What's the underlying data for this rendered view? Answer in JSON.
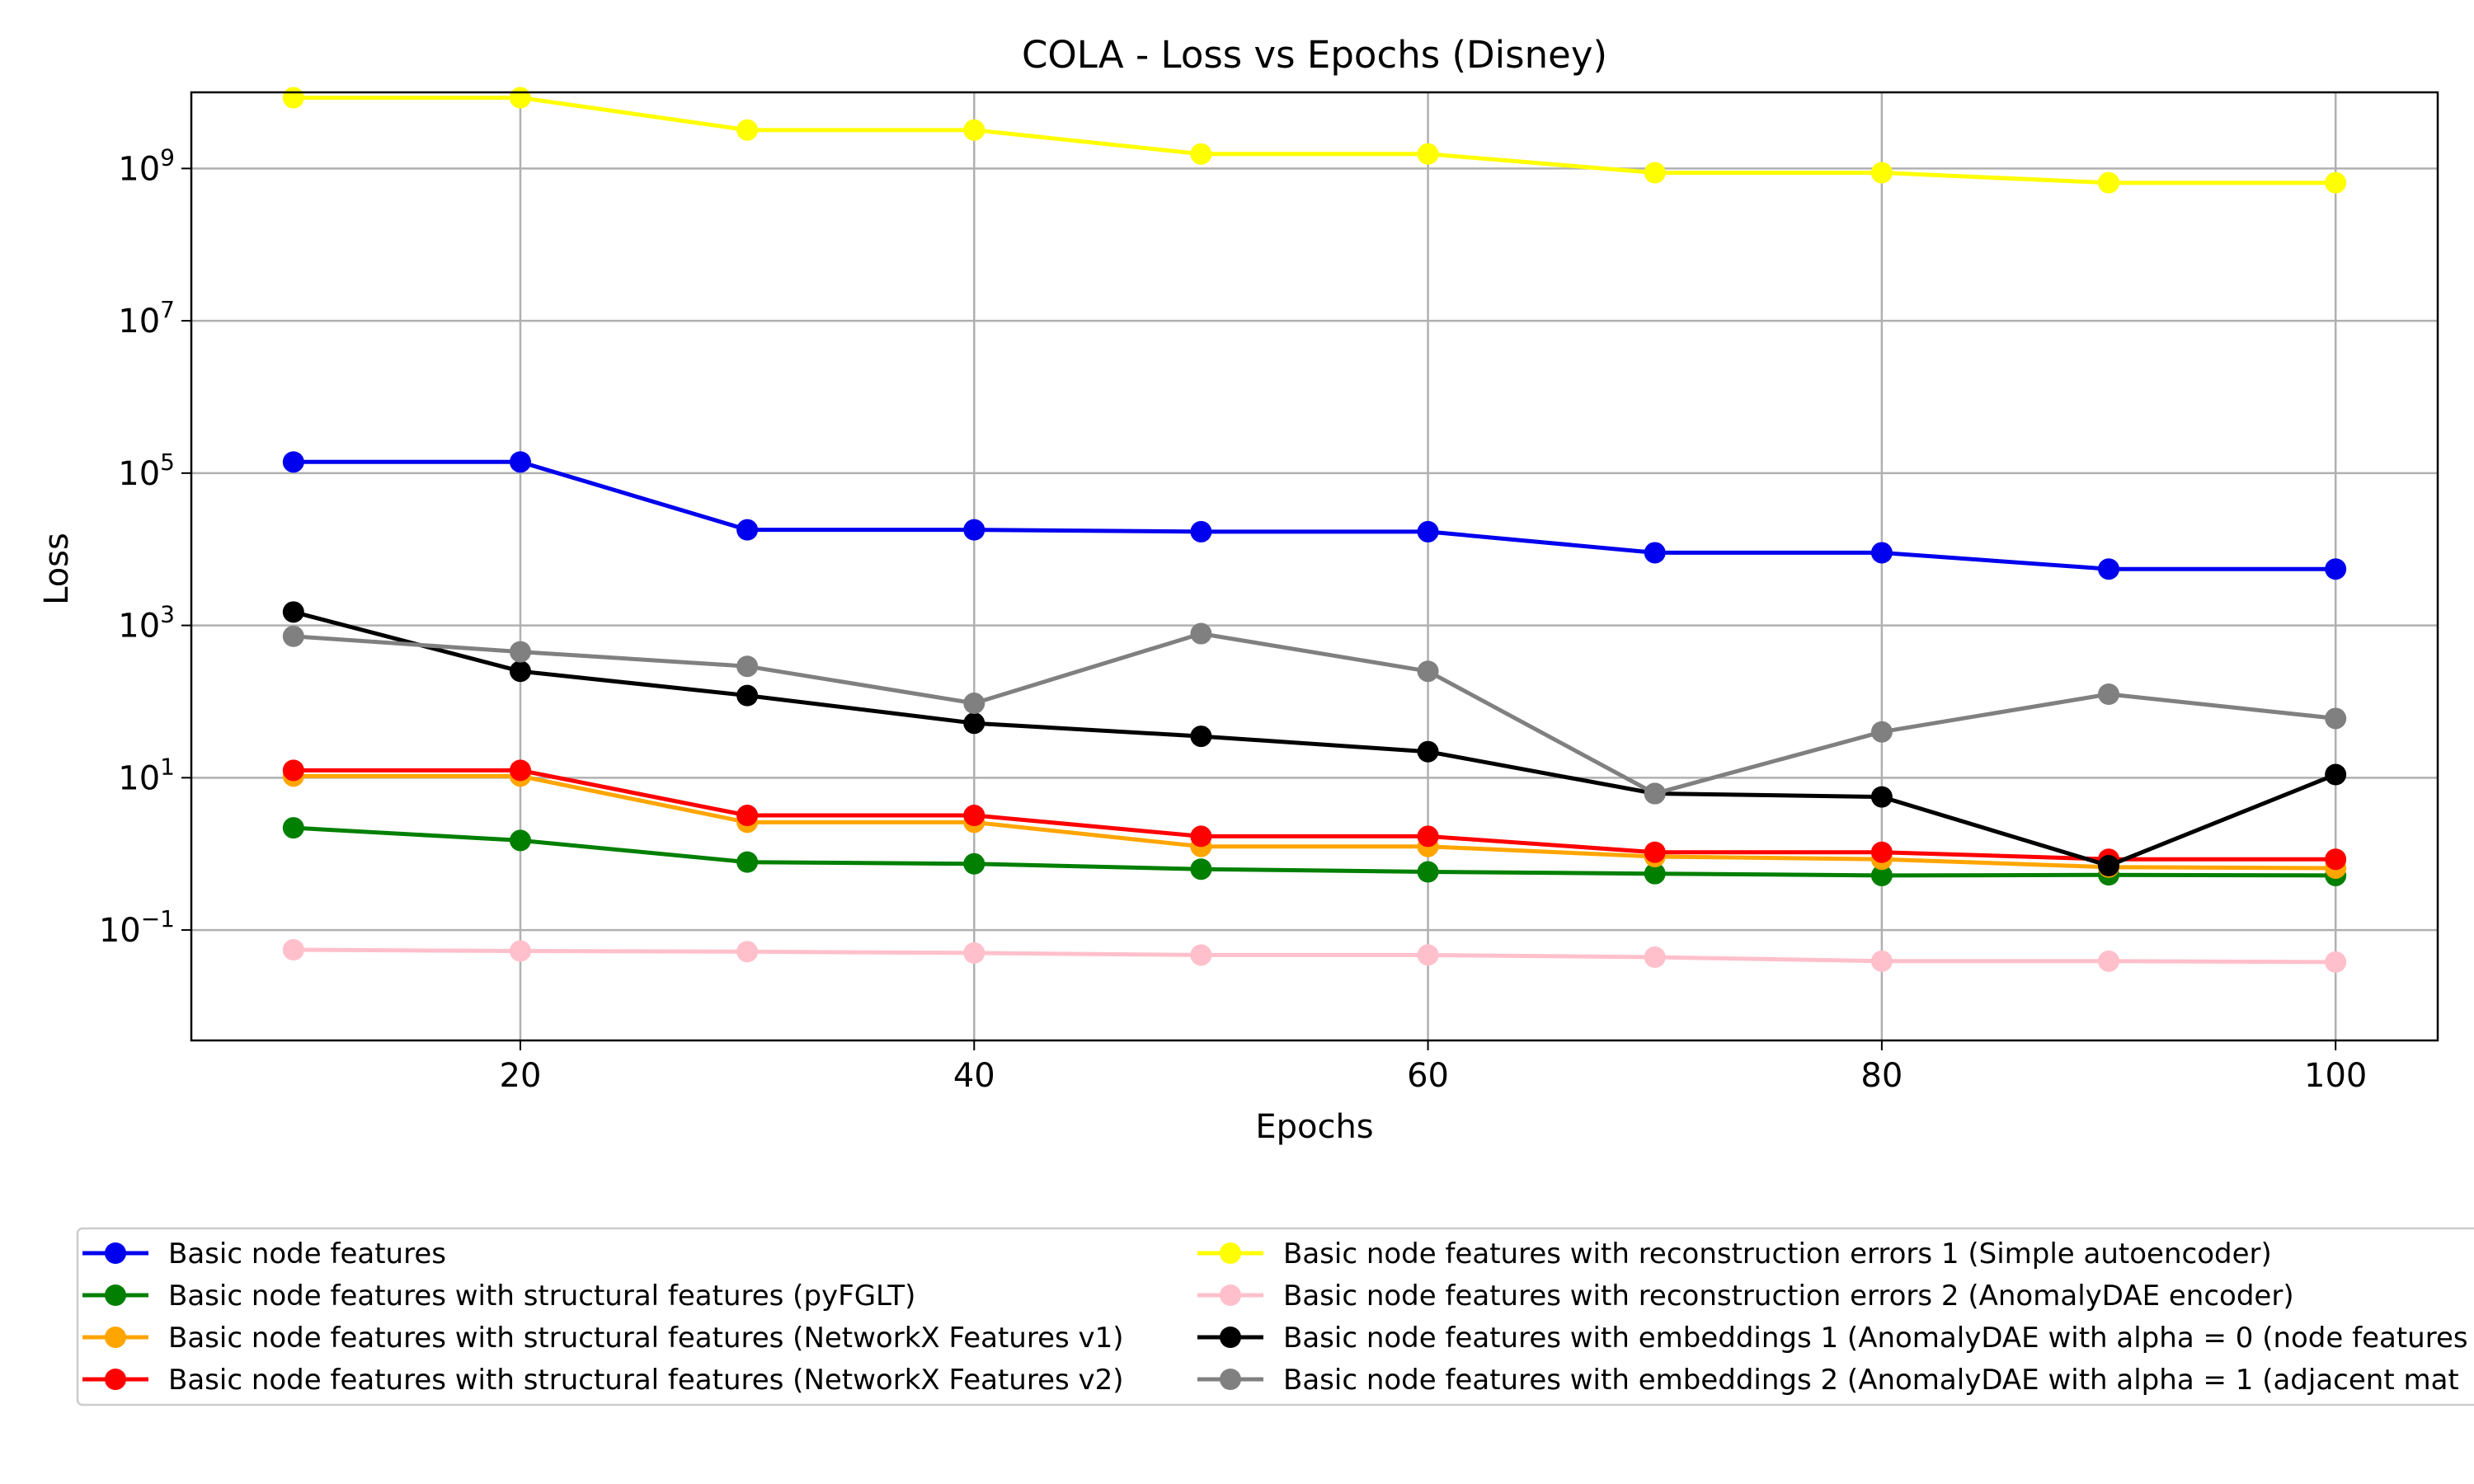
{
  "chart_data": {
    "type": "line",
    "title": "COLA - Loss vs Epochs (Disney)",
    "xlabel": "Epochs",
    "ylabel": "Loss",
    "yscale": "log",
    "grid": true,
    "xlim": [
      5.5,
      104.5
    ],
    "ylim_log10": [
      -2.45,
      10.0
    ],
    "x_ticks": [
      20,
      40,
      60,
      80,
      100
    ],
    "y_ticks": [
      {
        "base": "10",
        "exp": "9",
        "log": 9
      },
      {
        "base": "10",
        "exp": "7",
        "log": 7
      },
      {
        "base": "10",
        "exp": "5",
        "log": 5
      },
      {
        "base": "10",
        "exp": "3",
        "log": 3
      },
      {
        "base": "10",
        "exp": "1",
        "log": 1
      },
      {
        "base": "10",
        "exp": "−1",
        "log": -1
      }
    ],
    "legend_position": "below",
    "x": [
      10,
      20,
      30,
      40,
      50,
      60,
      70,
      80,
      90,
      100
    ],
    "series": [
      {
        "name": "Basic node features",
        "color": "#0000ee",
        "values": [
          140000,
          140000,
          18000,
          18000,
          17000,
          17000,
          9000,
          9000,
          5500,
          5500
        ]
      },
      {
        "name": "Basic node features with structural features (pyFGLT)",
        "color": "#007f00",
        "values": [
          2.2,
          1.5,
          0.78,
          0.74,
          0.63,
          0.58,
          0.55,
          0.52,
          0.53,
          0.52
        ]
      },
      {
        "name": "Basic node features with structural features (NetworkX Features v1)",
        "color": "#ffa500",
        "values": [
          10.5,
          10.5,
          2.6,
          2.6,
          1.25,
          1.25,
          0.92,
          0.85,
          0.67,
          0.65
        ]
      },
      {
        "name": "Basic node features with structural features (NetworkX Features v2)",
        "color": "#ff0000",
        "values": [
          12.5,
          12.5,
          3.2,
          3.2,
          1.7,
          1.7,
          1.05,
          1.05,
          0.85,
          0.85
        ]
      },
      {
        "name": "Basic node features with reconstruction errors 1 (Simple autoencoder)",
        "color": "#ffff00",
        "values": [
          8500000000,
          8500000000,
          3200000000,
          3200000000,
          1550000000,
          1550000000,
          880000000,
          880000000,
          650000000,
          650000000
        ]
      },
      {
        "name": "Basic node features with reconstruction errors 2 (AnomalyDAE encoder)",
        "color": "#ffc0cb",
        "values": [
          0.055,
          0.053,
          0.052,
          0.05,
          0.047,
          0.047,
          0.044,
          0.039,
          0.039,
          0.038
        ]
      },
      {
        "name": "Basic node features with embeddings 1 (AnomalyDAE with alpha = 0 (node features",
        "color": "#000000",
        "values": [
          1500,
          250,
          120,
          52,
          35,
          22,
          6.2,
          5.6,
          0.7,
          11
        ]
      },
      {
        "name": "Basic node features with embeddings 2 (AnomalyDAE with alpha = 1 (adjacent mat",
        "color": "#808080",
        "values": [
          720,
          450,
          290,
          95,
          780,
          250,
          6.2,
          40,
          125,
          60
        ]
      }
    ]
  }
}
